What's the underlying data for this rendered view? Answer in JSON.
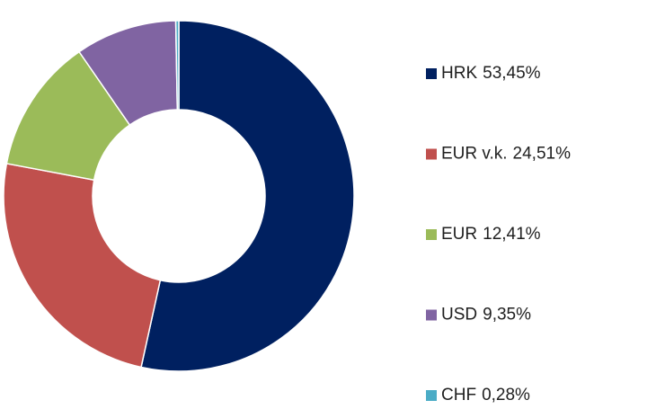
{
  "chart_data": {
    "type": "donut",
    "categories": [
      "HRK",
      "EUR v.k.",
      "EUR",
      "USD",
      "CHF"
    ],
    "values": [
      53.45,
      24.51,
      12.41,
      9.35,
      0.28
    ],
    "value_labels": [
      "53,45%",
      "24,51%",
      "12,41%",
      "9,35%",
      "0,28%"
    ],
    "colors": [
      "#002060",
      "#c0504d",
      "#9bbb59",
      "#8064a2",
      "#4bacc6"
    ],
    "legend": "right"
  }
}
